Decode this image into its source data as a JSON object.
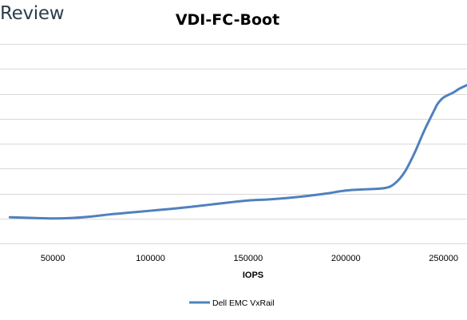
{
  "watermark": "Review",
  "chart_data": {
    "type": "line",
    "title": "VDI-FC-Boot",
    "xlabel": "IOPS",
    "ylabel": "",
    "xlim": [
      25000,
      262000
    ],
    "ylim": [
      0,
      8
    ],
    "x_ticks": [
      50000,
      100000,
      150000,
      200000,
      250000
    ],
    "y_gridlines": 8,
    "y_tick_labels_visible": false,
    "grid": true,
    "legend_position": "bottom",
    "series": [
      {
        "name": "Dell EMC VxRail",
        "color": "#4f81bd",
        "x": [
          28000,
          40000,
          50000,
          60000,
          70000,
          80000,
          90000,
          100000,
          110000,
          120000,
          130000,
          140000,
          150000,
          160000,
          170000,
          180000,
          190000,
          200000,
          210000,
          220000,
          225000,
          230000,
          235000,
          240000,
          245000,
          247000,
          250000,
          255000,
          258000,
          262000
        ],
        "y": [
          1.05,
          1.02,
          1.0,
          1.02,
          1.08,
          1.17,
          1.24,
          1.31,
          1.38,
          1.46,
          1.55,
          1.64,
          1.72,
          1.76,
          1.82,
          1.9,
          2.0,
          2.12,
          2.17,
          2.22,
          2.4,
          2.85,
          3.6,
          4.5,
          5.3,
          5.6,
          5.85,
          6.05,
          6.2,
          6.35
        ]
      }
    ]
  }
}
